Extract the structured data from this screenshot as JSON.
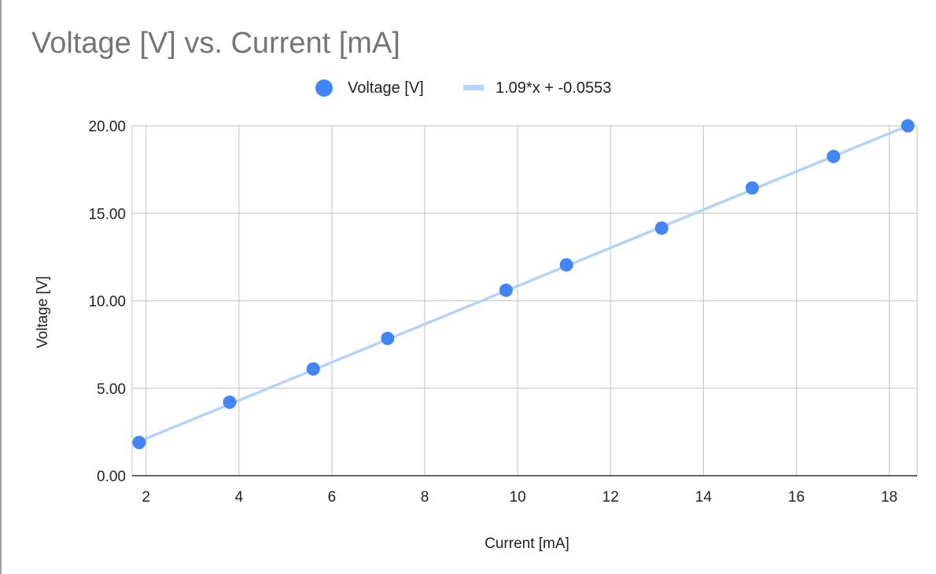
{
  "chart_data": {
    "type": "scatter",
    "title": "Voltage [V] vs. Current [mA]",
    "xlabel": "Current [mA]",
    "ylabel": "Voltage [V]",
    "xlim": [
      1.7,
      18.6
    ],
    "ylim": [
      0,
      20
    ],
    "x_ticks": [
      "2",
      "4",
      "6",
      "8",
      "10",
      "12",
      "14",
      "16",
      "18"
    ],
    "y_ticks": [
      "0.00",
      "5.00",
      "10.00",
      "15.00",
      "20.00"
    ],
    "grid": true,
    "legend_position": "top",
    "series": [
      {
        "name": "Voltage [V]",
        "color": "#4285f4",
        "x": [
          1.85,
          3.8,
          5.6,
          7.2,
          9.75,
          11.05,
          13.1,
          15.05,
          16.8,
          18.4
        ],
        "y": [
          1.9,
          4.2,
          6.1,
          7.85,
          10.6,
          12.05,
          14.15,
          16.45,
          18.25,
          20.0
        ]
      }
    ],
    "trendline": {
      "name": "1.09*x + -0.0553",
      "slope": 1.09,
      "intercept": -0.0553,
      "x_range": [
        1.7,
        18.4
      ],
      "color": "#b7d2f7"
    }
  }
}
